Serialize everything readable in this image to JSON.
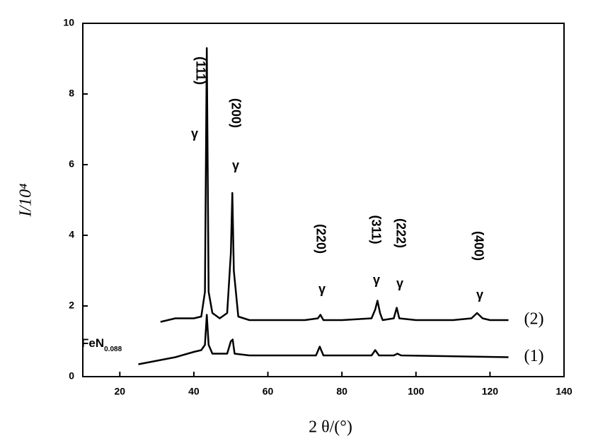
{
  "chart_data": {
    "type": "line",
    "x_label": "2 θ/(°)",
    "y_label": "I/10⁴",
    "xlim": [
      10,
      140
    ],
    "xticks": [
      20,
      40,
      60,
      80,
      100,
      120,
      140
    ],
    "ylim": [
      0,
      10
    ],
    "yticks": [
      0,
      2,
      4,
      6,
      8,
      10
    ],
    "series": [
      {
        "name": "(1)",
        "color": "#000000",
        "x": [
          25,
          30,
          35,
          40,
          42,
          43,
          43.5,
          44,
          45,
          49,
          50,
          50.5,
          51,
          55,
          73,
          74,
          75,
          88,
          89,
          90,
          94,
          95,
          96,
          125
        ],
        "values": [
          0.35,
          0.45,
          0.55,
          0.7,
          0.75,
          0.9,
          1.75,
          0.9,
          0.65,
          0.65,
          1.0,
          1.05,
          0.65,
          0.6,
          0.6,
          0.85,
          0.6,
          0.6,
          0.75,
          0.6,
          0.6,
          0.65,
          0.6,
          0.55
        ]
      },
      {
        "name": "(2)",
        "color": "#000000",
        "x": [
          31,
          35,
          40,
          42,
          43,
          43.5,
          44,
          45,
          47,
          49,
          50,
          50.4,
          50.8,
          52,
          55,
          60,
          70,
          73.5,
          74.2,
          75,
          80,
          88,
          89,
          89.6,
          90.3,
          91,
          94,
          94.8,
          95.5,
          100,
          110,
          115,
          116.5,
          118,
          120,
          125
        ],
        "values": [
          1.55,
          1.65,
          1.65,
          1.7,
          2.4,
          9.3,
          2.4,
          1.8,
          1.65,
          1.8,
          3.5,
          5.2,
          3.0,
          1.7,
          1.6,
          1.6,
          1.6,
          1.65,
          1.75,
          1.6,
          1.6,
          1.65,
          1.9,
          2.15,
          1.8,
          1.6,
          1.65,
          1.95,
          1.65,
          1.6,
          1.6,
          1.65,
          1.8,
          1.65,
          1.6,
          1.6
        ]
      }
    ],
    "peaks": [
      {
        "phase": "γ",
        "hkl": "(111)"
      },
      {
        "phase": "γ",
        "hkl": "(200)"
      },
      {
        "phase": "γ",
        "hkl": "(220)"
      },
      {
        "phase": "γ",
        "hkl": "(311)"
      },
      {
        "phase": "γ",
        "hkl": "(222)"
      },
      {
        "phase": "γ",
        "hkl": "(400)"
      }
    ],
    "sample_label": {
      "text": "FeN",
      "subscript": "0.088"
    }
  }
}
